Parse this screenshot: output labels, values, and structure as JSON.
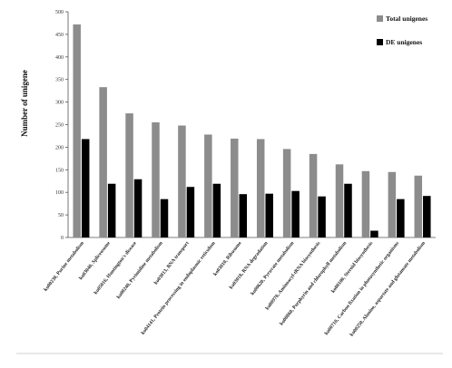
{
  "chart_data": {
    "type": "bar",
    "title": "",
    "xlabel": "",
    "ylabel": "Number of unigene",
    "ylim": [
      0,
      500
    ],
    "yticks": [
      0,
      50,
      100,
      150,
      200,
      250,
      300,
      350,
      400,
      450,
      500
    ],
    "grid": false,
    "legend_position": "top-right",
    "categories": [
      "ko00230, Purine metabolism",
      "ko03040, Spliceosome",
      "ko05016, Huntington's disease",
      "ko00240, Pyrimidine metabolism",
      "ko03013, RNA transport",
      "ko04141, Protein processing in endoplasmic reticulum",
      "ko03010, Ribosome",
      "ko03018, RNA degradation",
      "ko00620, Pyruvate metabolism",
      "ko00970, Aminoacyl-tRNA biosynthesis",
      "ko00860, Porphyrin and chlorophyll metabolism",
      "ko00100, Steroid biosynthesis",
      "ko00710, Carbon fixation in photosynthetic organisms",
      "ko00250, Alanine, aspartate and glutamate metabolism"
    ],
    "series": [
      {
        "name": "Total unigenes",
        "color": "#8c8c8c",
        "values": [
          472,
          333,
          275,
          255,
          248,
          228,
          219,
          218,
          196,
          185,
          162,
          147,
          145,
          137
        ]
      },
      {
        "name": "DE unigenes",
        "color": "#000000",
        "values": [
          218,
          119,
          129,
          85,
          112,
          119,
          96,
          97,
          103,
          91,
          119,
          15,
          85,
          92
        ]
      }
    ]
  }
}
